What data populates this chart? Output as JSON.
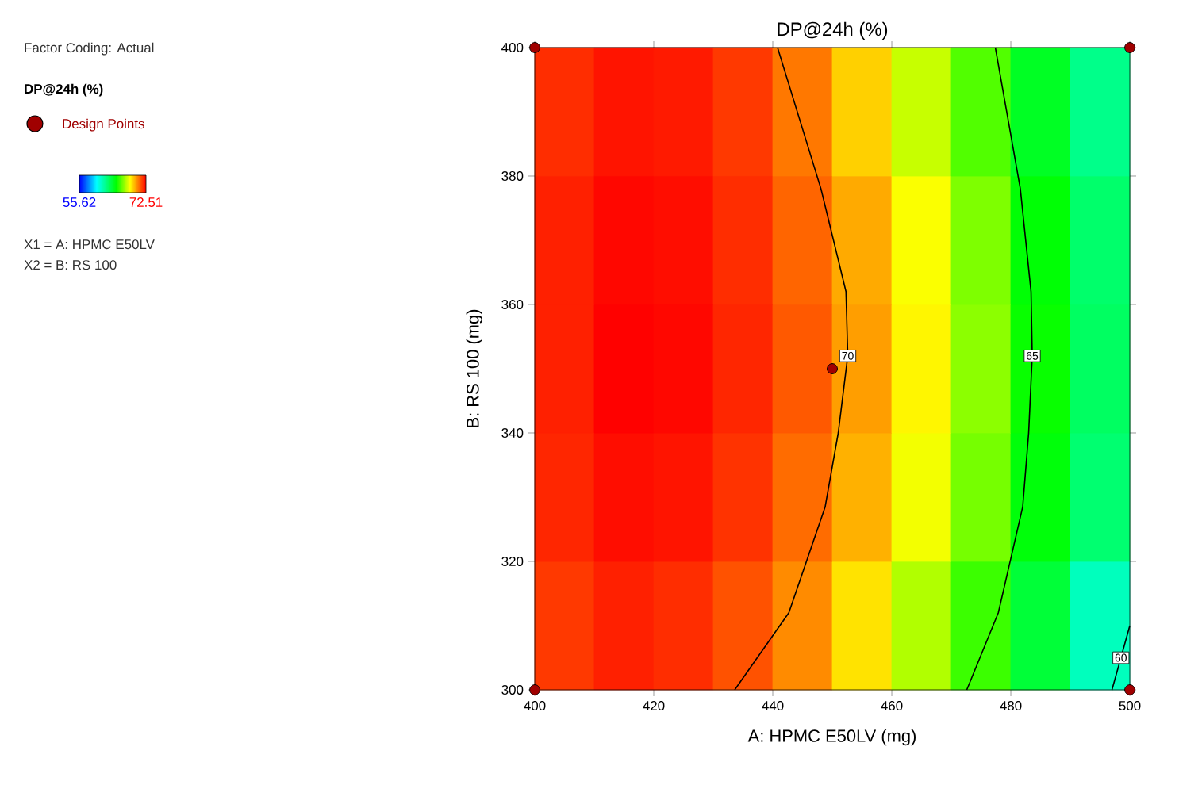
{
  "chart_data": [
    {
      "type": "heatmap",
      "categories": [
        null,
        null,
        null,
        null,
        null,
        null,
        null,
        null,
        null,
        null
      ],
      "y_categories": [
        null,
        null,
        null,
        null,
        null
      ],
      "cells": [
        [
          71.8,
          72.2,
          72.1,
          71.6,
          70.6,
          69.2,
          67.7,
          66.1,
          64.3,
          62.3
        ],
        [
          72.0,
          72.4,
          72.3,
          71.8,
          70.9,
          69.8,
          68.4,
          66.7,
          64.9,
          62.9
        ],
        [
          72.0,
          72.5,
          72.4,
          71.9,
          71.1,
          70.0,
          68.6,
          66.9,
          65.1,
          63.1
        ],
        [
          71.9,
          72.3,
          72.2,
          71.7,
          70.8,
          69.7,
          68.3,
          66.6,
          64.8,
          62.8
        ],
        [
          71.6,
          72.0,
          71.8,
          71.2,
          70.3,
          68.9,
          67.4,
          65.8,
          63.9,
          61.3
        ]
      ],
      "clim": [
        55.62,
        72.51
      ],
      "cticks": [
        55.62,
        72.51
      ]
    },
    {
      "type": "line",
      "title": "DP@24h (%)",
      "xlabel": "A: HPMC E50LV (mg)",
      "ylabel": "B: RS 100 (mg)",
      "legend_title": "DP@24h (%)",
      "legend": "left",
      "xlim": [
        400,
        500
      ],
      "xticks": [
        400,
        420,
        440,
        460,
        480,
        500
      ],
      "ylim": [
        300,
        400
      ],
      "yticks": [
        300,
        320,
        340,
        360,
        380,
        400
      ],
      "series": [
        {
          "type": "line",
          "color": "#000000",
          "x": [
            440.8,
            448.1,
            452.3,
            452.6,
            451.0,
            448.8,
            442.7,
            433.6
          ],
          "values": [
            400,
            378,
            362,
            352,
            340,
            328.5,
            312,
            300
          ]
        },
        {
          "type": "line",
          "color": "#000000",
          "x": [
            477.4,
            481.6,
            483.4,
            483.6,
            483.0,
            482.0,
            477.9,
            472.6
          ],
          "values": [
            400,
            378,
            362,
            352,
            340,
            328.5,
            312,
            300
          ]
        },
        {
          "type": "line",
          "color": "#000000",
          "x": [
            500,
            498.5,
            497
          ],
          "values": [
            310,
            305,
            300
          ]
        },
        {
          "type": "scatter",
          "name": "Design Points",
          "color": "#a00000",
          "marker": "circle",
          "x": [
            400,
            500,
            450,
            400,
            500
          ],
          "values": [
            400,
            400,
            350,
            300,
            300
          ]
        }
      ],
      "annotations": [
        "Factor Coding: Actual",
        "X1 = A: HPMC E50LV",
        "X2 = B: RS 100",
        {
          "text": "70",
          "x": 452.6,
          "y": 352
        },
        {
          "text": "65",
          "x": 483.6,
          "y": 352
        },
        {
          "text": "60",
          "x": 498.5,
          "y": 305
        }
      ]
    }
  ]
}
